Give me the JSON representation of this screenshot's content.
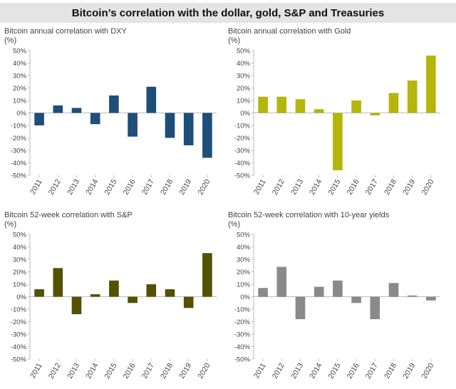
{
  "title": "Bitcoin’s correlation with the dollar, gold, S&P and Treasuries",
  "chart_data": [
    {
      "type": "bar",
      "title": "Bitcoin annual correlation with DXY",
      "ylabel": "(%)",
      "categories": [
        "2011",
        "2012",
        "2013",
        "2014",
        "2015",
        "2016",
        "2017",
        "2018",
        "2019",
        "2020"
      ],
      "values": [
        -10,
        6,
        4,
        -9,
        14,
        -19,
        21,
        -20,
        -26,
        -36
      ],
      "ylim": [
        -50,
        50
      ],
      "yticks": [
        "50%",
        "40%",
        "30%",
        "20%",
        "10%",
        "0%",
        "-10%",
        "-20%",
        "-30%",
        "-40%",
        "-50%"
      ],
      "color": "#1f4e79"
    },
    {
      "type": "bar",
      "title": "Bitcoin annual correlation with Gold",
      "ylabel": "(%)",
      "categories": [
        "2011",
        "2012",
        "2013",
        "2014",
        "2015",
        "2016",
        "2017",
        "2018",
        "2019",
        "2020"
      ],
      "values": [
        13,
        13,
        11,
        3,
        -46,
        10,
        -2,
        16,
        26,
        46
      ],
      "ylim": [
        -50,
        50
      ],
      "yticks": [
        "50%",
        "40%",
        "30%",
        "20%",
        "10%",
        "0%",
        "-10%",
        "-20%",
        "-30%",
        "-40%",
        "-50%"
      ],
      "color": "#b5b50c"
    },
    {
      "type": "bar",
      "title": "Bitcoin 52-week correlation with S&P",
      "ylabel": "(%)",
      "categories": [
        "2011",
        "2012",
        "2013",
        "2014",
        "2015",
        "2016",
        "2017",
        "2018",
        "2019",
        "2020"
      ],
      "values": [
        6,
        23,
        -14,
        2,
        13,
        -5,
        10,
        6,
        -9,
        35
      ],
      "ylim": [
        -50,
        50
      ],
      "yticks": [
        "50%",
        "40%",
        "30%",
        "20%",
        "10%",
        "0%",
        "-10%",
        "-20%",
        "-30%",
        "-40%",
        "-50%"
      ],
      "color": "#525201"
    },
    {
      "type": "bar",
      "title": "Bitcoin 52-week correlation with 10-year yields",
      "ylabel": "(%)",
      "categories": [
        "2011",
        "2012",
        "2013",
        "2014",
        "2015",
        "2016",
        "2017",
        "2018",
        "2019",
        "2020"
      ],
      "values": [
        7,
        24,
        -18,
        8,
        13,
        -5,
        -18,
        11,
        1,
        -3
      ],
      "ylim": [
        -50,
        50
      ],
      "yticks": [
        "50%",
        "40%",
        "30%",
        "20%",
        "10%",
        "0%",
        "-10%",
        "-20%",
        "-30%",
        "-40%",
        "-50%"
      ],
      "color": "#8a8a8a"
    }
  ]
}
